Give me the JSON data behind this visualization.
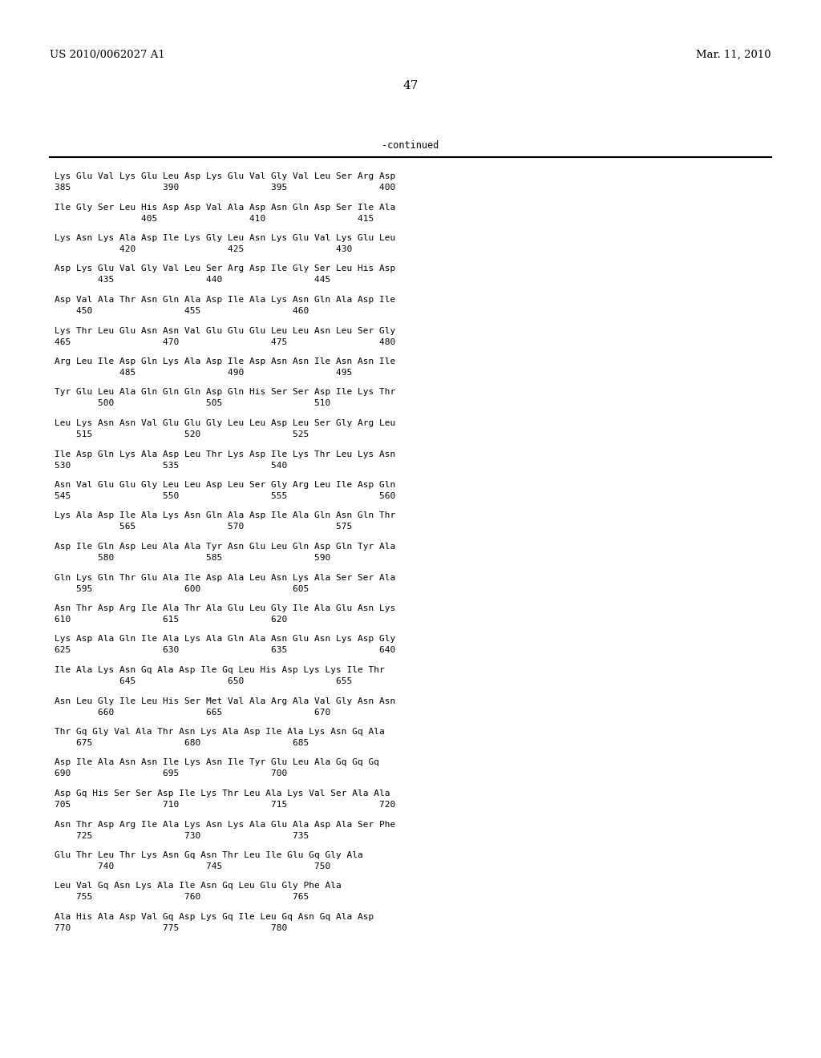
{
  "header_left": "US 2010/0062027 A1",
  "header_right": "Mar. 11, 2010",
  "page_number": "47",
  "continued_label": "-continued",
  "background_color": "#ffffff",
  "text_color": "#000000",
  "seq_font_size": 8.0,
  "header_font_size": 9.5,
  "page_num_font_size": 11,
  "seq_lines": [
    [
      "Lys Glu Val Lys Glu Leu Asp Lys Glu Val Gly Val Leu Ser Arg Asp",
      "385                 390                 395                 400"
    ],
    [
      "Ile Gly Ser Leu His Asp Asp Val Ala Asp Asn Gln Asp Ser Ile Ala",
      "                405                 410                 415"
    ],
    [
      "Lys Asn Lys Ala Asp Ile Lys Gly Leu Asn Lys Glu Val Lys Glu Leu",
      "            420                 425                 430"
    ],
    [
      "Asp Lys Glu Val Gly Val Leu Ser Arg Asp Ile Gly Ser Leu His Asp",
      "        435                 440                 445"
    ],
    [
      "Asp Val Ala Thr Asn Gln Ala Asp Ile Ala Lys Asn Gln Ala Asp Ile",
      "    450                 455                 460"
    ],
    [
      "Lys Thr Leu Glu Asn Asn Val Glu Glu Glu Leu Leu Asn Leu Ser Gly",
      "465                 470                 475                 480"
    ],
    [
      "Arg Leu Ile Asp Gln Lys Ala Asp Ile Asp Asn Asn Ile Asn Asn Ile",
      "            485                 490                 495"
    ],
    [
      "Tyr Glu Leu Ala Gln Gln Gln Asp Gln His Ser Ser Asp Ile Lys Thr",
      "        500                 505                 510"
    ],
    [
      "Leu Lys Asn Asn Val Glu Glu Gly Leu Leu Asp Leu Ser Gly Arg Leu",
      "    515                 520                 525"
    ],
    [
      "Ile Asp Gln Lys Ala Asp Leu Thr Lys Asp Ile Lys Thr Leu Lys Asn",
      "530                 535                 540"
    ],
    [
      "Asn Val Glu Glu Gly Leu Leu Asp Leu Ser Gly Arg Leu Ile Asp Gln",
      "545                 550                 555                 560"
    ],
    [
      "Lys Ala Asp Ile Ala Lys Asn Gln Ala Asp Ile Ala Gln Asn Gln Thr",
      "            565                 570                 575"
    ],
    [
      "Asp Ile Gln Asp Leu Ala Ala Tyr Asn Glu Leu Gln Asp Gln Tyr Ala",
      "        580                 585                 590"
    ],
    [
      "Gln Lys Gln Thr Glu Ala Ile Asp Ala Leu Asn Lys Ala Ser Ser Ala",
      "    595                 600                 605"
    ],
    [
      "Asn Thr Asp Arg Ile Ala Thr Ala Glu Leu Gly Ile Ala Glu Asn Lys",
      "610                 615                 620"
    ],
    [
      "Lys Asp Ala Gln Ile Ala Lys Ala Gln Ala Asn Glu Asn Lys Asp Gly",
      "625                 630                 635                 640"
    ],
    [
      "Ile Ala Lys Asn Gq Ala Asp Ile Gq Leu His Asp Lys Lys Ile Thr",
      "            645                 650                 655"
    ],
    [
      "Asn Leu Gly Ile Leu His Ser Met Val Ala Arg Ala Val Gly Asn Asn",
      "        660                 665                 670"
    ],
    [
      "Thr Gq Gly Val Ala Thr Asn Lys Ala Asp Ile Ala Lys Asn Gq Ala",
      "    675                 680                 685"
    ],
    [
      "Asp Ile Ala Asn Asn Ile Lys Asn Ile Tyr Glu Leu Ala Gq Gq Gq",
      "690                 695                 700"
    ],
    [
      "Asp Gq His Ser Ser Asp Ile Lys Thr Leu Ala Lys Val Ser Ala Ala",
      "705                 710                 715                 720"
    ],
    [
      "Asn Thr Asp Arg Ile Ala Lys Asn Lys Ala Glu Ala Asp Ala Ser Phe",
      "    725                 730                 735"
    ],
    [
      "Glu Thr Leu Thr Lys Asn Gq Asn Thr Leu Ile Glu Gq Gly Ala",
      "        740                 745                 750"
    ],
    [
      "Leu Val Gq Asn Lys Ala Ile Asn Gq Leu Glu Gly Phe Ala",
      "    755                 760                 765"
    ],
    [
      "Ala His Ala Asp Val Gq Asp Lys Gq Ile Leu Gq Asn Gq Ala Asp",
      "770                 775                 780"
    ]
  ]
}
